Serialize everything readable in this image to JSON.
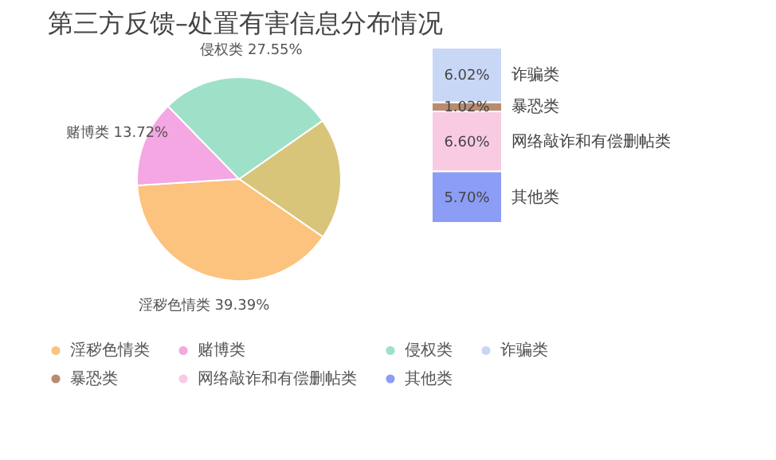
{
  "chart_data": [
    {
      "type": "pie",
      "title": "第三方反馈–处置有害信息分布情况",
      "categories": [
        null,
        "淫秽色情类",
        "赌博类",
        "侵权类"
      ],
      "values": [
        19.34,
        39.39,
        13.72,
        27.55
      ],
      "value_labels": [
        null,
        "39.39%",
        "13.72%",
        "27.55%"
      ],
      "colors": [
        "#d9c57a",
        "#fbc37e",
        "#f4a7e3",
        "#9fe0c9"
      ],
      "legend": "bottom"
    },
    {
      "type": "bar",
      "stacked": true,
      "categories": [
        null
      ],
      "tick_labels": false,
      "legend": "bottom",
      "series": [
        {
          "name": "其他类",
          "color": "#8c9df5",
          "values": [
            5.7
          ],
          "value_labels": [
            "5.70%"
          ]
        },
        {
          "name": "网络敲诈和有偿删帖类",
          "color": "#f8cbe3",
          "values": [
            6.6
          ],
          "value_labels": [
            "6.60%"
          ]
        },
        {
          "name": "暴恐类",
          "color": "#b98c72",
          "values": [
            1.02
          ],
          "value_labels": [
            "1.02%"
          ]
        },
        {
          "name": "诈骗类",
          "color": "#c9d7f7",
          "values": [
            6.02
          ],
          "value_labels": [
            "6.02%"
          ]
        }
      ]
    }
  ]
}
